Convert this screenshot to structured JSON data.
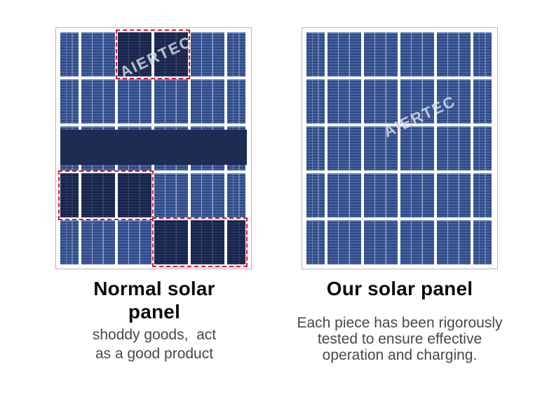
{
  "watermark_text": "AIERTEC",
  "colors": {
    "cell_blue": "#35528f",
    "cell_dark": "#1b2a52",
    "band_navy": "#1e2b52",
    "defect_outline_red": "#e8112d",
    "frame_gray": "#b5b5b5",
    "title_text": "#0c0c0c",
    "subtitle_text": "#484848"
  },
  "panels": [
    {
      "id": "normal",
      "watermark": "AIERTEC",
      "grid": [
        "nnddnn",
        "nnnnnn",
        "nnnnnn",
        "dddnnn",
        "nnnddd"
      ],
      "band": {
        "row": 2
      },
      "defect_boxes": [
        {
          "row": 0,
          "col_start": 2,
          "col_end": 3
        },
        {
          "row": 3,
          "col_start": 0,
          "col_end": 2
        },
        {
          "row": 4,
          "col_start": 3,
          "col_end": 5
        }
      ]
    },
    {
      "id": "our",
      "watermark": "AIERTEC",
      "grid": [
        "nnnnnn",
        "nnnnnn",
        "nnnnnn",
        "nnnnnn",
        "nnnnnn"
      ],
      "band": null,
      "defect_boxes": []
    }
  ],
  "captions": {
    "left_title_lines": [
      "Normal solar",
      "panel"
    ],
    "left_subtitle_lines": [
      "shoddy goods,  act",
      "as a good product"
    ],
    "right_title_lines": [
      "Our solar panel"
    ],
    "right_subtitle_lines": [
      "Each piece has been rigorously",
      "tested to ensure effective",
      "operation and charging."
    ]
  }
}
